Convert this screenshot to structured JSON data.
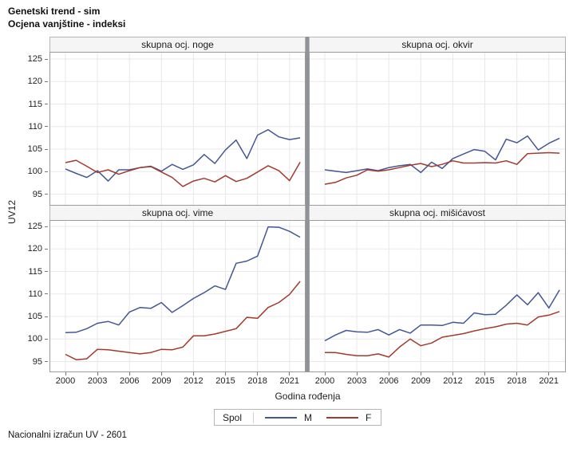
{
  "footnote": "Nacionalni izračun UV - 2601",
  "chart_data": {
    "type": "line",
    "title": "Genetski trend - sim",
    "subtitle": "Ocjena vanjštine - indeksi",
    "xlabel": "Godina rođenja",
    "ylabel": "UV12",
    "grid": true,
    "legend_position": "bottom",
    "legend": {
      "title": "Spol",
      "items": [
        {
          "label": "M"
        },
        {
          "label": "F"
        }
      ]
    },
    "colors": {
      "M": "#445694",
      "F": "#A23A2E",
      "grid": "#e8e8e8",
      "border": "#9b9b9b",
      "tick": "#777777"
    },
    "ylim": [
      93,
      127
    ],
    "yticks": [
      95,
      100,
      105,
      110,
      115,
      120,
      125
    ],
    "xticks": [
      2000,
      2003,
      2006,
      2009,
      2012,
      2015,
      2018,
      2021
    ],
    "x": [
      2000,
      2001,
      2002,
      2003,
      2004,
      2005,
      2006,
      2007,
      2008,
      2009,
      2010,
      2011,
      2012,
      2013,
      2014,
      2015,
      2016,
      2017,
      2018,
      2019,
      2020,
      2021,
      2022
    ],
    "panels": [
      {
        "header": "skupna ocj. noge",
        "series": [
          {
            "name": "M",
            "values": [
              100.6,
              99.6,
              98.7,
              100.2,
              97.9,
              100.4,
              100.4,
              100.9,
              101.2,
              100.1,
              101.6,
              100.5,
              101.5,
              103.8,
              101.8,
              104.8,
              107.0,
              102.9,
              108.1,
              109.3,
              107.7,
              107.1,
              107.5
            ]
          },
          {
            "name": "F",
            "values": [
              102.0,
              102.5,
              101.2,
              99.8,
              100.4,
              99.4,
              100.2,
              100.9,
              101.1,
              99.9,
              98.7,
              96.7,
              97.9,
              98.5,
              97.7,
              99.1,
              97.8,
              98.5,
              99.9,
              101.3,
              100.2,
              98.0,
              102.1
            ]
          }
        ]
      },
      {
        "header": "skupna ocj. okvir",
        "series": [
          {
            "name": "M",
            "values": [
              100.4,
              100.1,
              99.8,
              100.2,
              100.6,
              100.2,
              100.9,
              101.3,
              101.6,
              99.8,
              102.1,
              100.7,
              102.9,
              103.9,
              104.9,
              104.5,
              102.6,
              107.2,
              106.4,
              107.9,
              104.8,
              106.3,
              107.4
            ]
          },
          {
            "name": "F",
            "values": [
              97.2,
              97.6,
              98.6,
              99.2,
              100.4,
              100.1,
              100.4,
              100.9,
              101.4,
              101.8,
              101.1,
              101.6,
              102.4,
              101.9,
              101.9,
              102.0,
              101.9,
              102.4,
              101.6,
              104.0,
              104.1,
              104.2,
              104.1
            ]
          }
        ]
      },
      {
        "header": "skupna ocj. vime",
        "series": [
          {
            "name": "M",
            "values": [
              101.4,
              101.5,
              102.3,
              103.5,
              103.9,
              103.1,
              106.0,
              107.0,
              106.8,
              108.1,
              105.9,
              107.4,
              109.0,
              110.3,
              111.8,
              111.0,
              116.8,
              117.3,
              118.4,
              124.9,
              124.8,
              123.9,
              122.6
            ]
          },
          {
            "name": "F",
            "values": [
              96.6,
              95.4,
              95.6,
              97.7,
              97.6,
              97.3,
              97.0,
              96.7,
              97.0,
              97.7,
              97.6,
              98.2,
              100.7,
              100.7,
              101.1,
              101.7,
              102.3,
              104.8,
              104.6,
              107.0,
              108.1,
              109.9,
              112.8
            ]
          }
        ]
      },
      {
        "header": "skupna ocj. mišićavost",
        "series": [
          {
            "name": "M",
            "values": [
              99.6,
              100.9,
              101.9,
              101.6,
              101.5,
              102.1,
              100.9,
              102.1,
              101.3,
              103.1,
              103.1,
              103.0,
              103.7,
              103.5,
              105.8,
              105.4,
              105.5,
              107.5,
              109.8,
              107.6,
              110.3,
              106.9,
              110.9
            ]
          },
          {
            "name": "F",
            "values": [
              97.0,
              97.0,
              96.6,
              96.3,
              96.3,
              96.7,
              96.0,
              98.2,
              100.0,
              98.5,
              99.1,
              100.4,
              100.8,
              101.2,
              101.8,
              102.3,
              102.7,
              103.3,
              103.5,
              103.1,
              104.9,
              105.3,
              106.1
            ]
          }
        ]
      }
    ]
  }
}
